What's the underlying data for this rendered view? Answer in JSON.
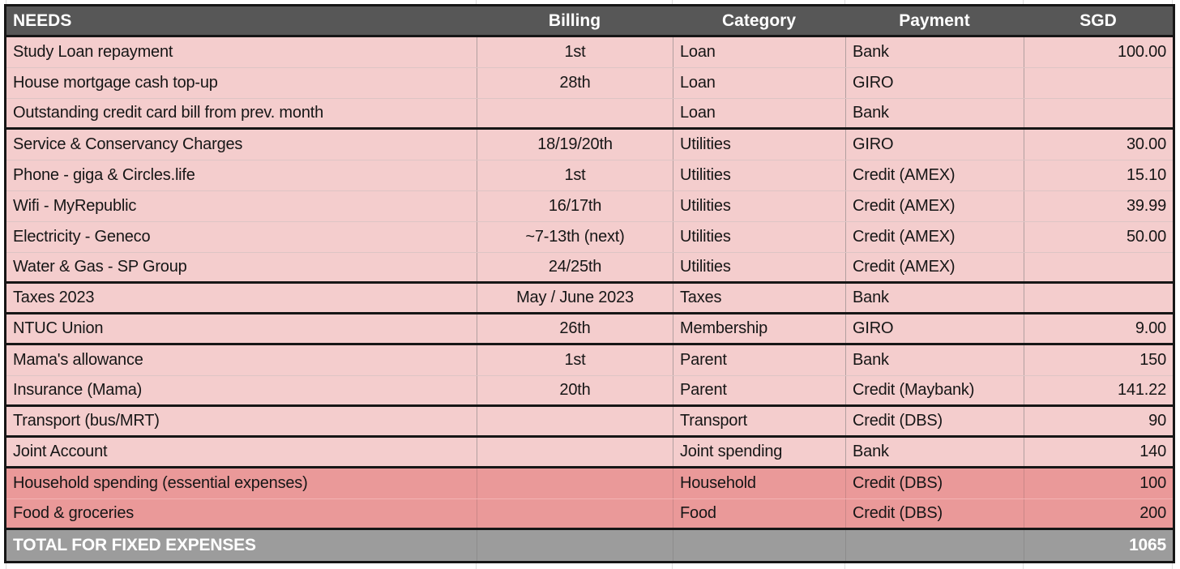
{
  "sheet": {
    "header": {
      "needs": "NEEDS",
      "billing": "Billing",
      "category": "Category",
      "payment": "Payment",
      "sgd": "SGD"
    },
    "rows": [
      {
        "needs": "Study Loan repayment",
        "billing": "1st",
        "category": "Loan",
        "payment": "Bank",
        "sgd": "100.00",
        "tone": "pink",
        "group_end": false
      },
      {
        "needs": "House mortgage cash top-up",
        "billing": "28th",
        "category": "Loan",
        "payment": "GIRO",
        "sgd": "",
        "tone": "pink",
        "group_end": false
      },
      {
        "needs": "Outstanding credit card bill from prev. month",
        "billing": "",
        "category": "Loan",
        "payment": "Bank",
        "sgd": "",
        "tone": "pink",
        "group_end": true
      },
      {
        "needs": "Service & Conservancy Charges",
        "billing": "18/19/20th",
        "category": "Utilities",
        "payment": "GIRO",
        "sgd": "30.00",
        "tone": "pink",
        "group_end": false
      },
      {
        "needs": "Phone - giga & Circles.life",
        "billing": "1st",
        "category": "Utilities",
        "payment": "Credit (AMEX)",
        "sgd": "15.10",
        "tone": "pink",
        "group_end": false
      },
      {
        "needs": "Wifi - MyRepublic",
        "billing": "16/17th",
        "category": "Utilities",
        "payment": "Credit (AMEX)",
        "sgd": "39.99",
        "tone": "pink",
        "group_end": false
      },
      {
        "needs": "Electricity - Geneco",
        "billing": "~7-13th (next)",
        "category": "Utilities",
        "payment": "Credit (AMEX)",
        "sgd": "50.00",
        "tone": "pink",
        "group_end": false
      },
      {
        "needs": "Water & Gas - SP Group",
        "billing": "24/25th",
        "category": "Utilities",
        "payment": "Credit (AMEX)",
        "sgd": "",
        "tone": "pink",
        "group_end": true
      },
      {
        "needs": "Taxes 2023",
        "billing": "May / June 2023",
        "category": "Taxes",
        "payment": "Bank",
        "sgd": "",
        "tone": "pink",
        "group_end": true
      },
      {
        "needs": "NTUC Union",
        "billing": "26th",
        "category": "Membership",
        "payment": "GIRO",
        "sgd": "9.00",
        "tone": "pink",
        "group_end": true
      },
      {
        "needs": "Mama's allowance",
        "billing": "1st",
        "category": "Parent",
        "payment": "Bank",
        "sgd": "150",
        "tone": "pink",
        "group_end": false
      },
      {
        "needs": "Insurance (Mama)",
        "billing": "20th",
        "category": "Parent",
        "payment": "Credit (Maybank)",
        "sgd": "141.22",
        "tone": "pink",
        "group_end": true
      },
      {
        "needs": "Transport (bus/MRT)",
        "billing": "",
        "category": "Transport",
        "payment": "Credit (DBS)",
        "sgd": "90",
        "tone": "pink",
        "group_end": true
      },
      {
        "needs": "Joint Account",
        "billing": "",
        "category": "Joint spending",
        "payment": "Bank",
        "sgd": "140",
        "tone": "pink",
        "group_end": true
      },
      {
        "needs": "Household spending (essential expenses)",
        "billing": "",
        "category": "Household",
        "payment": "Credit (DBS)",
        "sgd": "100",
        "tone": "red",
        "group_end": false
      },
      {
        "needs": "Food & groceries",
        "billing": "",
        "category": "Food",
        "payment": "Credit (DBS)",
        "sgd": "200",
        "tone": "red",
        "group_end": true
      }
    ],
    "total": {
      "label": "TOTAL FOR FIXED EXPENSES",
      "billing": "",
      "category": "",
      "payment": "",
      "sgd": "1065"
    }
  },
  "colors": {
    "header_bg": "#575757",
    "row_pink": "#f4cdcd",
    "row_red": "#ea9999",
    "total_bg": "#9c9c9c",
    "border_dark": "#161616",
    "text": "#161616",
    "header_text": "#ffffff"
  }
}
